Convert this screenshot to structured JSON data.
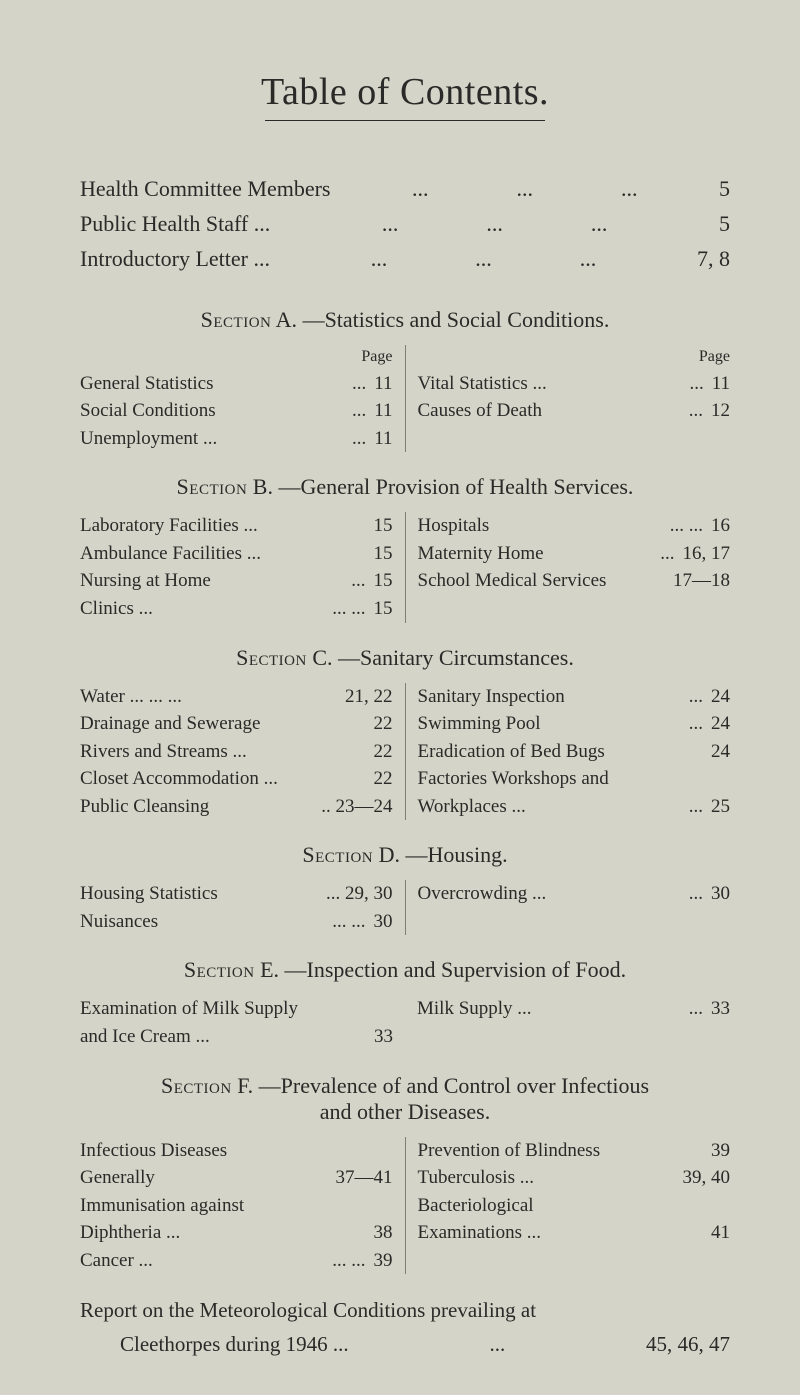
{
  "title": "Table of Contents.",
  "top": [
    {
      "label": "Health Committee Members",
      "page": "5"
    },
    {
      "label": "Public Health Staff   ...",
      "page": "5"
    },
    {
      "label": "Introductory Letter   ...",
      "page": "7, 8"
    }
  ],
  "page_word": "Page",
  "sections": {
    "A": {
      "head_prefix": "Section",
      "head_letter": "A.",
      "head_rest": "—Statistics and Social Conditions.",
      "left": [
        {
          "label": "General Statistics",
          "page": "11"
        },
        {
          "label": "Social Conditions",
          "page": "11"
        },
        {
          "label": "Unemployment ...",
          "page": "11"
        }
      ],
      "right": [
        {
          "label": "Vital Statistics ...",
          "page": "11"
        },
        {
          "label": "Causes of Death",
          "page": "12"
        }
      ]
    },
    "B": {
      "head_prefix": "Section",
      "head_letter": "B.",
      "head_rest": "—General Provision of Health Services.",
      "left": [
        {
          "label": "Laboratory Facilities   ...",
          "page": "15"
        },
        {
          "label": "Ambulance Facilities   ...",
          "page": "15"
        },
        {
          "label": "Nursing at Home",
          "page": "15"
        },
        {
          "label": "Clinics ...",
          "page": "15"
        }
      ],
      "right": [
        {
          "label": "Hospitals",
          "page": "16"
        },
        {
          "label": "Maternity Home",
          "page": "16, 17"
        },
        {
          "label": "School Medical Services",
          "page": "17—18"
        }
      ]
    },
    "C": {
      "head_prefix": "Section",
      "head_letter": "C.",
      "head_rest": "—Sanitary Circumstances.",
      "left": [
        {
          "label": "Water ...         ...      ...",
          "page": "21, 22"
        },
        {
          "label": "Drainage and Sewerage",
          "page": "22"
        },
        {
          "label": "Rivers and Streams      ...",
          "page": "22"
        },
        {
          "label": "Closet Accommodation ...",
          "page": "22"
        },
        {
          "label": "Public Cleansing",
          "page": ".. 23—24"
        }
      ],
      "right": [
        {
          "label": "Sanitary Inspection",
          "page": "24"
        },
        {
          "label": "Swimming Pool",
          "page": "24"
        },
        {
          "label": "Eradication of Bed Bugs",
          "page": "24"
        },
        {
          "label": "Factories Workshops and",
          "page": ""
        },
        {
          "label": "   Workplaces ...",
          "page": "25"
        }
      ]
    },
    "D": {
      "head_prefix": "Section",
      "head_letter": "D.",
      "head_rest": "—Housing.",
      "left": [
        {
          "label": "Housing Statistics",
          "page": "... 29, 30"
        },
        {
          "label": "Nuisances",
          "page": "30"
        }
      ],
      "right": [
        {
          "label": "Overcrowding ...",
          "page": "30"
        }
      ]
    },
    "E": {
      "head_prefix": "Section",
      "head_letter": "E.",
      "head_rest": "—Inspection and Supervision of Food.",
      "left": [
        {
          "label": "Examination of Milk Supply",
          "page": ""
        },
        {
          "label": "      and Ice Cream    ...",
          "page": "33"
        }
      ],
      "right": [
        {
          "label": "Milk Supply   ...",
          "page": "33"
        }
      ]
    },
    "F": {
      "head_prefix": "Section",
      "head_letter": "F.",
      "head_rest": "—Prevalence of and Control over Infectious",
      "head_rest2": "and other Diseases.",
      "left": [
        {
          "label": "Infectious Diseases",
          "page": ""
        },
        {
          "label": "            Generally",
          "page": "37—41"
        },
        {
          "label": "Immunisation against",
          "page": ""
        },
        {
          "label": "            Diphtheria   ...",
          "page": "38"
        },
        {
          "label": "Cancer ...",
          "page": "39"
        }
      ],
      "right": [
        {
          "label": "Prevention of Blindness",
          "page": "39"
        },
        {
          "label": "Tuberculosis      ...",
          "page": "39, 40"
        },
        {
          "label": "Bacteriological",
          "page": ""
        },
        {
          "label": "         Examinations   ...",
          "page": "41"
        }
      ]
    }
  },
  "footer": {
    "line1_left": "Report on the Meteorological Conditions prevailing at",
    "line2_left": "Cleethorpes during 1946 ...",
    "line2_right": "45, 46, 47"
  }
}
